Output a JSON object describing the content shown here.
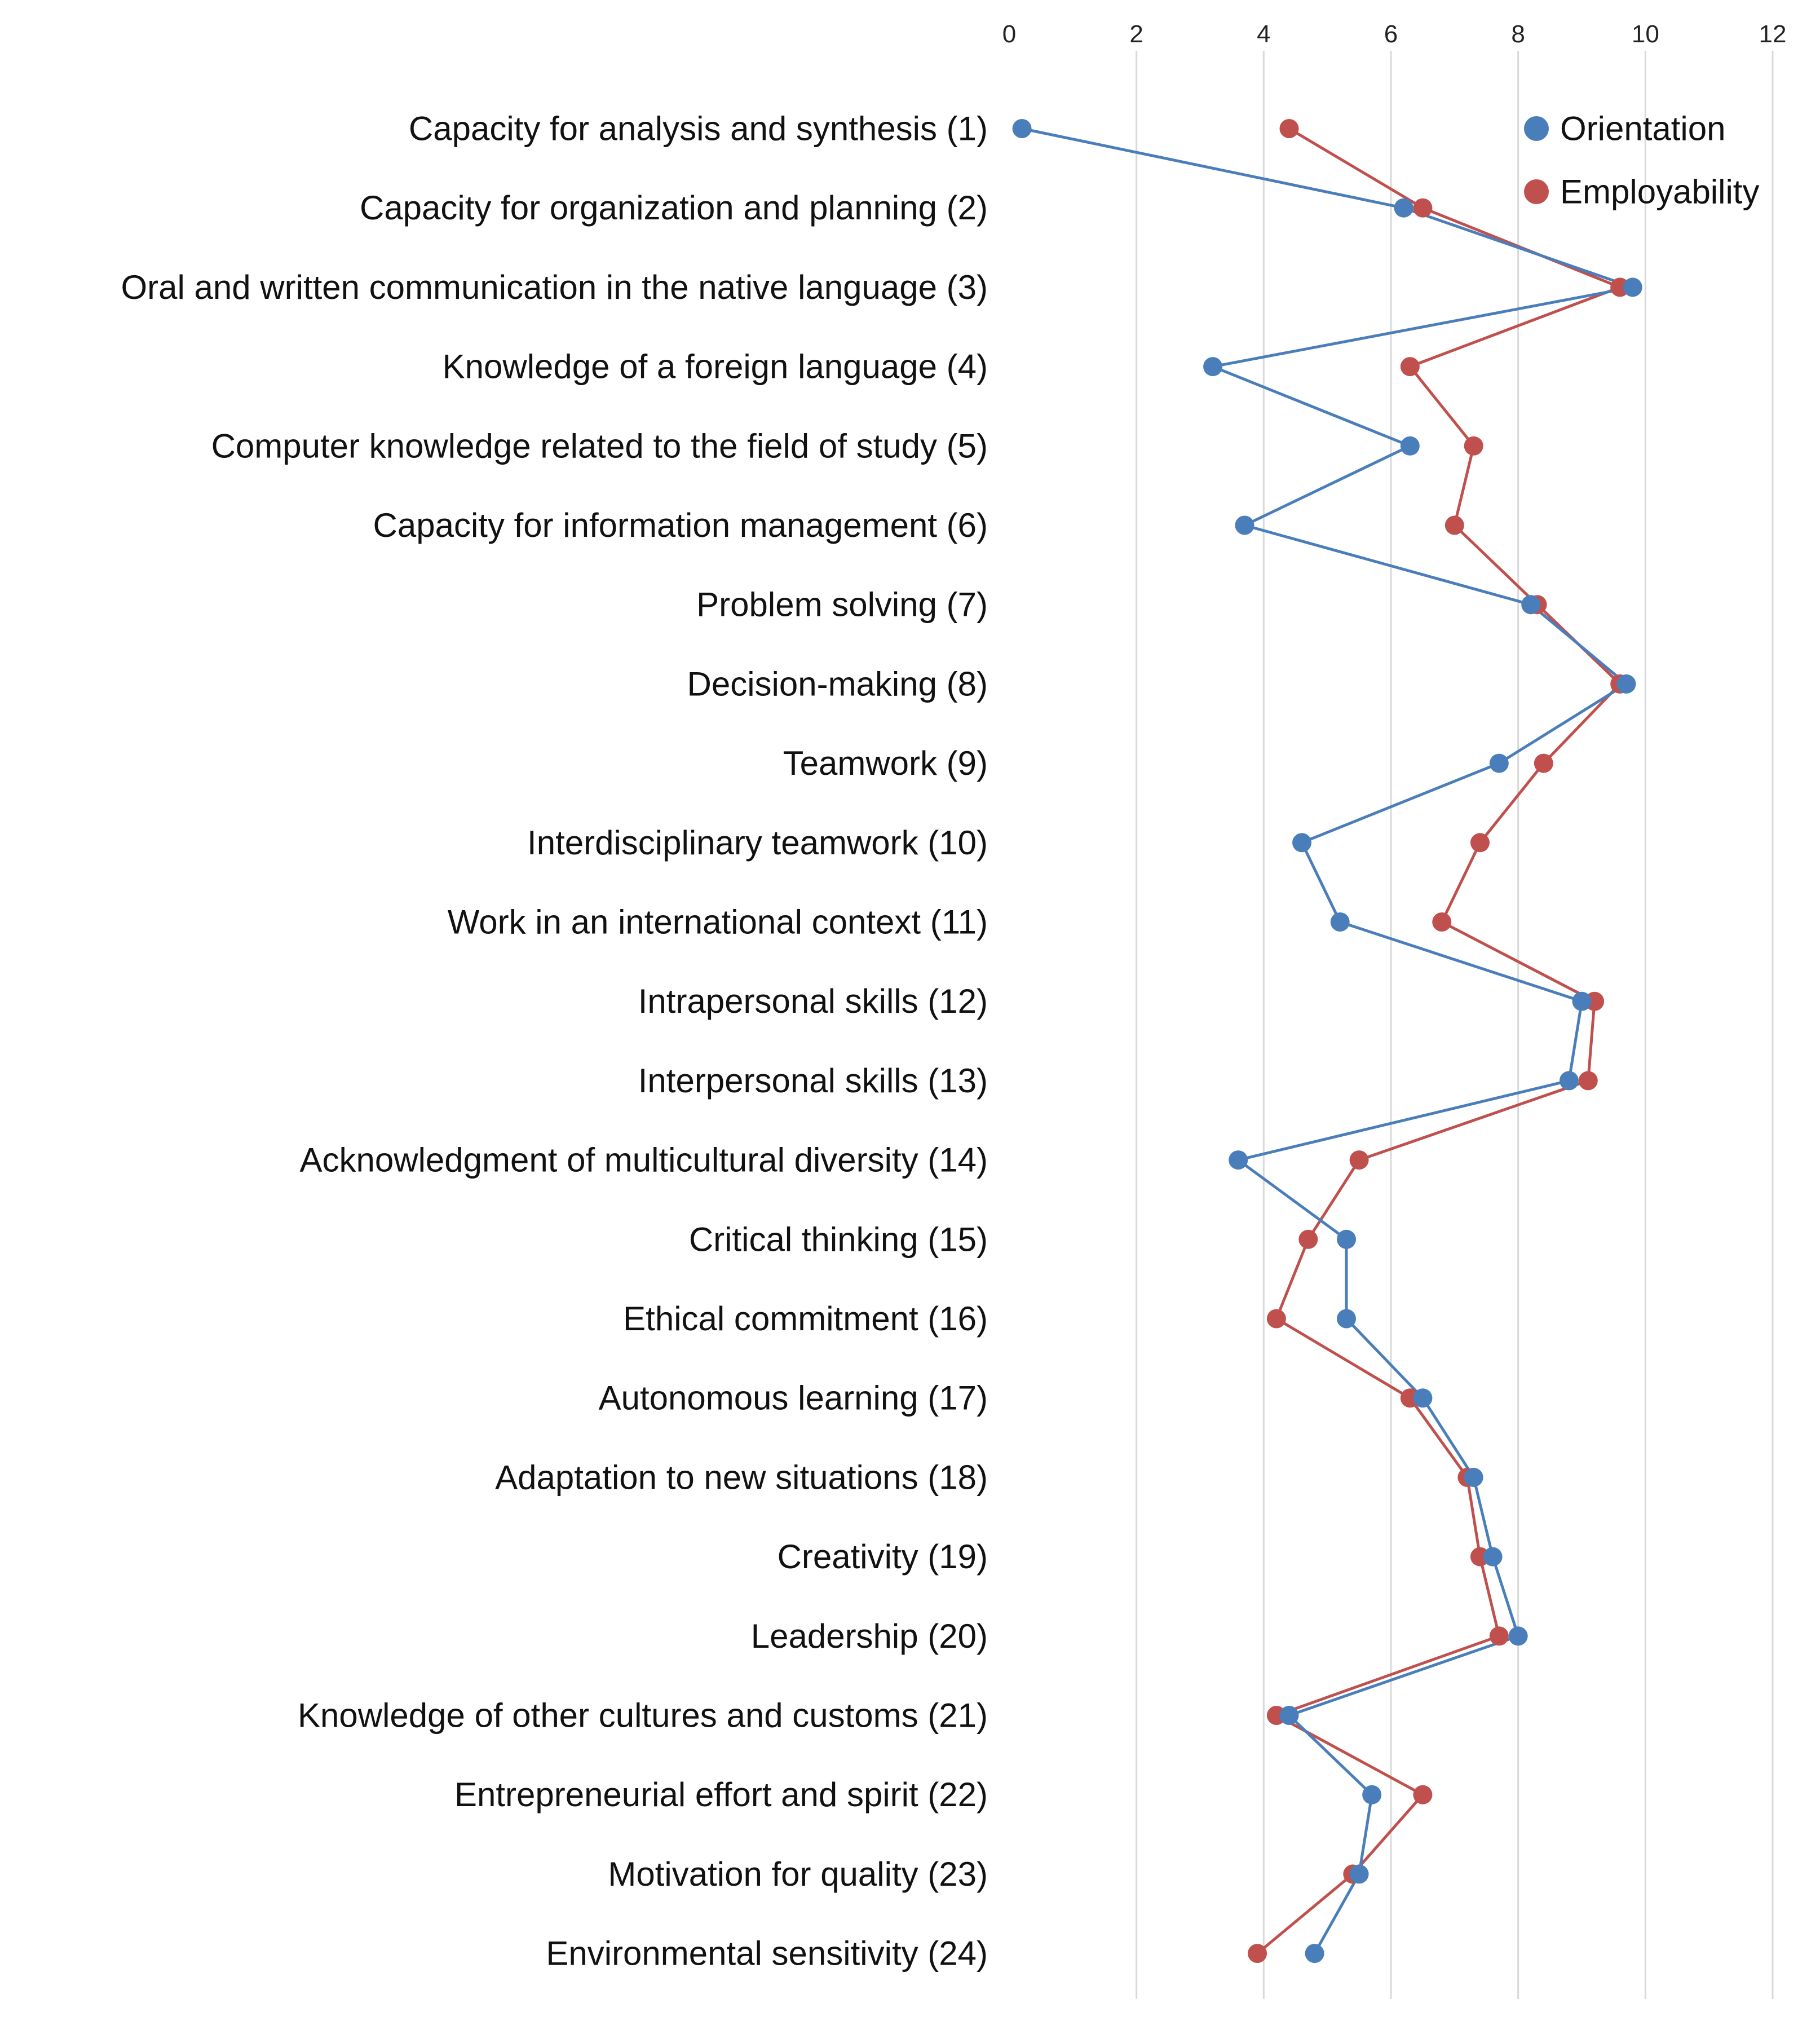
{
  "chart_data": {
    "type": "line",
    "orientation": "horizontal",
    "title": "",
    "xlabel": "",
    "ylabel": "",
    "xlim": [
      0,
      12
    ],
    "x_ticks": [
      "0",
      "2",
      "4",
      "6",
      "8",
      "10",
      "12"
    ],
    "grid": "vertical",
    "legend_position": "top-right",
    "categories": [
      "Capacity for analysis and synthesis (1)",
      "Capacity for organization and planning (2)",
      "Oral and written communication in the native language (3)",
      "Knowledge of a foreign language (4)",
      "Computer knowledge related to the field of study (5)",
      "Capacity for information management (6)",
      "Problem solving (7)",
      "Decision-making (8)",
      "Teamwork (9)",
      "Interdisciplinary teamwork (10)",
      "Work in an international context (11)",
      "Intrapersonal skills (12)",
      "Interpersonal skills (13)",
      "Acknowledgment of multicultural diversity (14)",
      "Critical thinking (15)",
      "Ethical commitment (16)",
      "Autonomous learning (17)",
      "Adaptation to new situations (18)",
      "Creativity (19)",
      "Leadership (20)",
      "Knowledge of other cultures and customs (21)",
      "Entrepreneurial effort and spirit (22)",
      "Motivation for quality (23)",
      "Environmental sensitivity (24)"
    ],
    "series": [
      {
        "name": "Orientation",
        "color": "#4a7ebb",
        "values": [
          0.2,
          6.2,
          9.8,
          3.2,
          6.3,
          3.7,
          8.2,
          9.7,
          7.7,
          4.6,
          5.2,
          9.0,
          8.8,
          3.6,
          5.3,
          5.3,
          6.5,
          7.3,
          7.6,
          8.0,
          4.4,
          5.7,
          5.5,
          4.8
        ]
      },
      {
        "name": "Employability",
        "color": "#c0504d",
        "values": [
          4.4,
          6.5,
          9.6,
          6.3,
          7.3,
          7.0,
          8.3,
          9.6,
          8.4,
          7.4,
          6.8,
          9.2,
          9.1,
          5.5,
          4.7,
          4.2,
          6.3,
          7.2,
          7.4,
          7.7,
          4.2,
          6.5,
          5.4,
          3.9
        ]
      }
    ]
  }
}
